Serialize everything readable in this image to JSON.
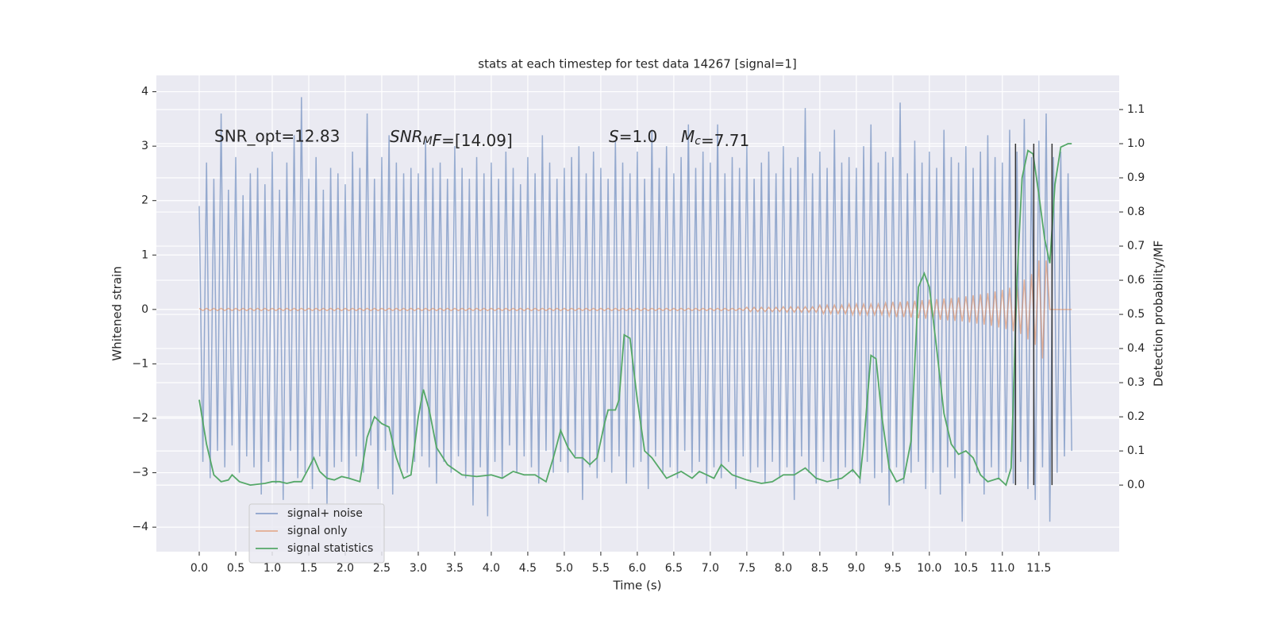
{
  "chart_data": {
    "type": "line",
    "title": "stats at each timestep for test data 14267 [signal=1]",
    "xlabel": "Time (s)",
    "ylabel": "Whitened strain",
    "y2label": "Detection probability/MF",
    "annotations": [
      "SNR_opt=12.83",
      {
        "base": "SNR",
        "sub": "M",
        "italic": "F",
        "tail": "=[14.09]"
      },
      {
        "base": "S",
        "tail": "=1.0"
      },
      {
        "base": "M",
        "sub": "c",
        "tail": "=7.71"
      }
    ],
    "xlim": [
      -0.587,
      12.6
    ],
    "ylim": [
      -4.45,
      4.3
    ],
    "y2lim": [
      -0.195,
      1.2
    ],
    "xticks": [
      {
        "value": 0,
        "label": "0.0"
      },
      0.5,
      {
        "value": 1,
        "label": "1.0"
      },
      1.5,
      {
        "value": 2,
        "label": "2.0"
      },
      2.5,
      {
        "value": 3,
        "label": "3.0"
      },
      3.5,
      {
        "value": 4,
        "label": "4.0"
      },
      4.5,
      {
        "value": 5,
        "label": "5.0"
      },
      5.5,
      {
        "value": 6,
        "label": "6.0"
      },
      6.5,
      {
        "value": 7,
        "label": "7.0"
      },
      7.5,
      {
        "value": 8,
        "label": "8.0"
      },
      8.5,
      {
        "value": 9,
        "label": "9.0"
      },
      9.5,
      {
        "value": 10,
        "label": "10.0"
      },
      10.5,
      {
        "value": 11,
        "label": "11.0"
      },
      11.5
    ],
    "yticks": [
      {
        "value": -4,
        "label": "−4"
      },
      {
        "value": -3,
        "label": "−3"
      },
      {
        "value": -2,
        "label": "−2"
      },
      {
        "value": -1,
        "label": "−1"
      },
      0,
      1,
      2,
      3,
      4
    ],
    "y2ticks": [
      {
        "value": 0,
        "label": "0.0"
      },
      0.1,
      0.2,
      0.3,
      0.4,
      0.5,
      0.6,
      0.7,
      0.8,
      0.9,
      {
        "value": 1,
        "label": "1.0"
      },
      1.1
    ],
    "grid": true,
    "legend": "lower left",
    "x": [
      0,
      0.05,
      0.1,
      0.15,
      0.2,
      0.25,
      0.3,
      0.35,
      0.4,
      0.45,
      0.5,
      0.55,
      0.6,
      0.65,
      0.7,
      0.75,
      0.8,
      0.85,
      0.9,
      0.95,
      1,
      1.05,
      1.1,
      1.15,
      1.2,
      1.25,
      1.3,
      1.35,
      1.4,
      1.45,
      1.5,
      1.55,
      1.6,
      1.65,
      1.7,
      1.75,
      1.8,
      1.85,
      1.9,
      1.95,
      2,
      2.05,
      2.1,
      2.15,
      2.2,
      2.25,
      2.3,
      2.35,
      2.4,
      2.45,
      2.5,
      2.55,
      2.6,
      2.65,
      2.7,
      2.75,
      2.8,
      2.85,
      2.9,
      2.95,
      3,
      3.05,
      3.1,
      3.15,
      3.2,
      3.25,
      3.3,
      3.35,
      3.4,
      3.45,
      3.5,
      3.55,
      3.6,
      3.65,
      3.7,
      3.75,
      3.8,
      3.85,
      3.9,
      3.95,
      4,
      4.05,
      4.1,
      4.15,
      4.2,
      4.25,
      4.3,
      4.35,
      4.4,
      4.45,
      4.5,
      4.55,
      4.6,
      4.65,
      4.7,
      4.75,
      4.8,
      4.85,
      4.9,
      4.95,
      5,
      5.05,
      5.1,
      5.15,
      5.2,
      5.25,
      5.3,
      5.35,
      5.4,
      5.45,
      5.5,
      5.55,
      5.6,
      5.65,
      5.7,
      5.75,
      5.8,
      5.85,
      5.9,
      5.95,
      6,
      6.05,
      6.1,
      6.15,
      6.2,
      6.25,
      6.3,
      6.35,
      6.4,
      6.45,
      6.5,
      6.55,
      6.6,
      6.65,
      6.7,
      6.75,
      6.8,
      6.85,
      6.9,
      6.95,
      7,
      7.05,
      7.1,
      7.15,
      7.2,
      7.25,
      7.3,
      7.35,
      7.4,
      7.45,
      7.5,
      7.55,
      7.6,
      7.65,
      7.7,
      7.75,
      7.8,
      7.85,
      7.9,
      7.95,
      8,
      8.05,
      8.1,
      8.15,
      8.2,
      8.25,
      8.3,
      8.35,
      8.4,
      8.45,
      8.5,
      8.55,
      8.6,
      8.65,
      8.7,
      8.75,
      8.8,
      8.85,
      8.9,
      8.95,
      9,
      9.05,
      9.1,
      9.15,
      9.2,
      9.25,
      9.3,
      9.35,
      9.4,
      9.45,
      9.5,
      9.55,
      9.6,
      9.65,
      9.7,
      9.75,
      9.8,
      9.85,
      9.9,
      9.95,
      10,
      10.05,
      10.1,
      10.15,
      10.2,
      10.25,
      10.3,
      10.35,
      10.4,
      10.45,
      10.5,
      10.55,
      10.6,
      10.65,
      10.7,
      10.75,
      10.8,
      10.85,
      10.9,
      10.95,
      11,
      11.05,
      11.1,
      11.15,
      11.2,
      11.25,
      11.3,
      11.35,
      11.4,
      11.45,
      11.5,
      11.55,
      11.6,
      11.65,
      11.7,
      11.75,
      11.8,
      11.85,
      11.9,
      11.95
    ],
    "series": [
      {
        "name": "signal+ noise",
        "color": "#4c72b0",
        "values": [
          1.9,
          -2.8,
          2.7,
          -3.1,
          2.4,
          -2.6,
          3.6,
          -2.9,
          2.2,
          -2.5,
          2.8,
          -3.0,
          2.1,
          -2.7,
          2.5,
          -2.9,
          2.6,
          -3.4,
          2.3,
          -2.8,
          2.9,
          -3.2,
          2.2,
          -3.5,
          2.7,
          -2.6,
          3.2,
          -3.1,
          3.9,
          -3.0,
          2.4,
          -3.3,
          2.8,
          -2.7,
          2.2,
          -3.6,
          2.6,
          -2.9,
          2.5,
          -2.8,
          2.3,
          -3.1,
          2.9,
          -2.7,
          2.6,
          -3.0,
          3.6,
          -2.5,
          2.4,
          -3.3,
          2.8,
          -2.6,
          3.2,
          -3.4,
          2.7,
          -2.9,
          2.5,
          -3.0,
          2.6,
          -2.8,
          2.5,
          -2.7,
          3.1,
          -2.9,
          2.6,
          -3.2,
          2.7,
          -2.8,
          2.4,
          -3.0,
          3.0,
          -2.7,
          2.6,
          -3.1,
          2.4,
          -3.6,
          2.8,
          -2.9,
          2.5,
          -3.8,
          2.7,
          -2.8,
          2.4,
          -3.1,
          2.9,
          -2.5,
          2.6,
          -3.0,
          2.3,
          -2.7,
          2.8,
          -2.9,
          2.5,
          -3.2,
          3.2,
          -2.6,
          2.7,
          -3.0,
          2.4,
          -2.8,
          2.6,
          -3.0,
          2.8,
          -2.7,
          3.0,
          -3.5,
          2.5,
          -2.9,
          2.9,
          -3.1,
          2.6,
          -2.8,
          2.4,
          -3.0,
          3.1,
          -2.7,
          2.7,
          -3.2,
          2.5,
          -2.9,
          2.9,
          -2.8,
          2.4,
          -3.3,
          3.3,
          -2.7,
          2.6,
          -3.0,
          3.0,
          -2.9,
          2.5,
          -3.1,
          2.8,
          -2.6,
          3.4,
          -3.0,
          2.6,
          -2.8,
          2.9,
          -3.2,
          2.7,
          -2.9,
          3.4,
          -3.1,
          2.5,
          -2.8,
          2.8,
          -3.3,
          2.6,
          -2.7,
          3.0,
          -3.0,
          2.4,
          -2.9,
          2.7,
          -3.2,
          2.9,
          -2.8,
          2.5,
          -3.1,
          3.0,
          -2.9,
          2.6,
          -3.5,
          2.8,
          -2.7,
          3.7,
          -3.0,
          2.5,
          -3.2,
          2.9,
          -2.8,
          2.6,
          -3.1,
          3.3,
          -3.3,
          2.7,
          -2.9,
          2.8,
          -3.0,
          2.6,
          -3.2,
          3.0,
          -2.8,
          3.4,
          -3.1,
          2.7,
          -3.0,
          2.9,
          -3.6,
          2.8,
          -2.9,
          3.8,
          -3.2,
          2.5,
          -3.0,
          3.1,
          -2.8,
          2.7,
          -3.3,
          2.9,
          -3.0,
          2.6,
          -3.4,
          3.3,
          -2.9,
          2.8,
          -3.1,
          2.7,
          -3.9,
          3.0,
          -3.2,
          2.6,
          -3.0,
          2.9,
          -3.4,
          3.2,
          -2.9,
          2.8,
          -3.1,
          2.7,
          -3.0,
          3.3,
          -3.2,
          2.9,
          -2.8,
          3.5,
          -3.3,
          2.8,
          -3.5,
          3.1,
          -2.9,
          3.6,
          -3.9,
          2.8,
          -3.0,
          2.9,
          -2.7,
          2.5,
          -2.6
        ]
      },
      {
        "name": "signal only",
        "color": "#dd8452",
        "values": [
          0.02,
          -0.02,
          0.02,
          -0.02,
          0.02,
          -0.02,
          0.02,
          -0.02,
          0.02,
          -0.02,
          0.02,
          -0.02,
          0.02,
          -0.02,
          0.02,
          -0.02,
          0.02,
          -0.02,
          0.02,
          -0.02,
          0.02,
          -0.02,
          0.02,
          -0.02,
          0.02,
          -0.02,
          0.02,
          -0.02,
          0.02,
          -0.02,
          0.02,
          -0.02,
          0.02,
          -0.02,
          0.02,
          -0.02,
          0.02,
          -0.02,
          0.02,
          -0.02,
          0.02,
          -0.02,
          0.02,
          -0.02,
          0.02,
          -0.02,
          0.02,
          -0.02,
          0.02,
          -0.02,
          0.02,
          -0.02,
          0.02,
          -0.02,
          0.02,
          -0.02,
          0.02,
          -0.02,
          0.02,
          -0.02,
          0.02,
          -0.02,
          0.02,
          -0.02,
          0.02,
          -0.02,
          0.02,
          -0.02,
          0.02,
          -0.02,
          0.02,
          -0.02,
          0.02,
          -0.02,
          0.02,
          -0.02,
          0.02,
          -0.02,
          0.02,
          -0.02,
          0.02,
          -0.02,
          0.02,
          -0.02,
          0.02,
          -0.02,
          0.02,
          -0.02,
          0.02,
          -0.02,
          0.02,
          -0.02,
          0.02,
          -0.02,
          0.02,
          -0.02,
          0.02,
          -0.02,
          0.02,
          -0.02,
          0.02,
          -0.02,
          0.02,
          -0.02,
          0.02,
          -0.02,
          0.02,
          -0.02,
          0.02,
          -0.02,
          0.02,
          -0.02,
          0.02,
          -0.02,
          0.02,
          -0.02,
          0.02,
          -0.02,
          0.02,
          -0.02,
          0.02,
          -0.02,
          0.02,
          -0.02,
          0.02,
          -0.02,
          0.02,
          -0.02,
          0.02,
          -0.02,
          0.02,
          -0.02,
          0.02,
          -0.02,
          0.02,
          -0.02,
          0.02,
          -0.02,
          0.02,
          -0.02,
          0.02,
          -0.02,
          0.02,
          -0.02,
          0.02,
          -0.02,
          0.02,
          -0.02,
          0.02,
          -0.02,
          0.04,
          -0.04,
          0.04,
          -0.04,
          0.04,
          -0.04,
          0.04,
          -0.04,
          0.04,
          -0.04,
          0.05,
          -0.05,
          0.05,
          -0.05,
          0.05,
          -0.05,
          0.05,
          -0.05,
          0.05,
          -0.05,
          0.08,
          -0.08,
          0.08,
          -0.08,
          0.08,
          -0.08,
          0.08,
          -0.08,
          0.1,
          -0.1,
          0.1,
          -0.1,
          0.1,
          -0.1,
          0.1,
          -0.1,
          0.1,
          -0.1,
          0.12,
          -0.12,
          0.14,
          -0.14,
          0.14,
          -0.14,
          0.15,
          -0.15,
          0.16,
          -0.16,
          0.17,
          -0.17,
          0.18,
          -0.18,
          0.19,
          -0.19,
          0.2,
          -0.2,
          0.21,
          -0.21,
          0.22,
          -0.22,
          0.24,
          -0.24,
          0.26,
          -0.26,
          0.28,
          -0.28,
          0.3,
          -0.3,
          0.33,
          -0.33,
          0.36,
          -0.36,
          0.4,
          -0.4,
          0.45,
          -0.45,
          0.55,
          -0.55,
          0.65,
          -0.65,
          0.9,
          -0.9,
          0.9,
          0,
          0,
          0,
          0,
          0,
          0,
          0
        ]
      },
      {
        "name": "signal statistics",
        "color": "#55a868",
        "axis": "y2",
        "x": [
          0,
          0.1,
          0.2,
          0.3,
          0.4,
          0.45,
          0.55,
          0.7,
          0.9,
          1.0,
          1.1,
          1.2,
          1.3,
          1.4,
          1.5,
          1.57,
          1.65,
          1.75,
          1.85,
          1.95,
          2.05,
          2.2,
          2.3,
          2.4,
          2.5,
          2.6,
          2.7,
          2.8,
          2.9,
          3.0,
          3.07,
          3.15,
          3.25,
          3.4,
          3.6,
          3.8,
          4.0,
          4.15,
          4.3,
          4.45,
          4.6,
          4.75,
          4.85,
          4.95,
          5.05,
          5.15,
          5.25,
          5.35,
          5.45,
          5.55,
          5.6,
          5.7,
          5.75,
          5.82,
          5.9,
          6.0,
          6.1,
          6.2,
          6.3,
          6.4,
          6.5,
          6.6,
          6.75,
          6.85,
          6.95,
          7.05,
          7.15,
          7.3,
          7.5,
          7.7,
          7.85,
          8.0,
          8.15,
          8.3,
          8.45,
          8.6,
          8.8,
          8.95,
          9.05,
          9.1,
          9.2,
          9.27,
          9.35,
          9.45,
          9.55,
          9.65,
          9.75,
          9.85,
          9.93,
          10.0,
          10.1,
          10.2,
          10.3,
          10.4,
          10.5,
          10.6,
          10.7,
          10.8,
          10.95,
          11.05,
          11.12,
          11.2,
          11.27,
          11.35,
          11.42,
          11.5,
          11.58,
          11.65,
          11.72,
          11.8,
          11.9,
          11.95
        ],
        "values": [
          0.25,
          0.12,
          0.03,
          0.01,
          0.015,
          0.03,
          0.01,
          0.0,
          0.005,
          0.01,
          0.01,
          0.005,
          0.01,
          0.01,
          0.05,
          0.08,
          0.04,
          0.02,
          0.015,
          0.025,
          0.02,
          0.01,
          0.14,
          0.2,
          0.18,
          0.17,
          0.08,
          0.02,
          0.03,
          0.2,
          0.28,
          0.22,
          0.11,
          0.06,
          0.03,
          0.025,
          0.03,
          0.02,
          0.04,
          0.03,
          0.03,
          0.01,
          0.08,
          0.16,
          0.11,
          0.08,
          0.08,
          0.06,
          0.08,
          0.18,
          0.22,
          0.22,
          0.25,
          0.44,
          0.43,
          0.25,
          0.1,
          0.08,
          0.05,
          0.02,
          0.03,
          0.04,
          0.02,
          0.04,
          0.03,
          0.02,
          0.06,
          0.03,
          0.015,
          0.005,
          0.01,
          0.03,
          0.03,
          0.05,
          0.02,
          0.01,
          0.02,
          0.045,
          0.02,
          0.12,
          0.38,
          0.37,
          0.2,
          0.05,
          0.01,
          0.02,
          0.13,
          0.58,
          0.62,
          0.58,
          0.4,
          0.21,
          0.12,
          0.09,
          0.1,
          0.08,
          0.03,
          0.01,
          0.02,
          0.0,
          0.05,
          0.6,
          0.9,
          0.98,
          0.97,
          0.85,
          0.72,
          0.65,
          0.88,
          0.99,
          1.0,
          1.0
        ]
      }
    ],
    "vlines": {
      "x": [
        11.18,
        11.43,
        11.68
      ],
      "y2": [
        0,
        1.0
      ],
      "color": "#333333"
    }
  }
}
